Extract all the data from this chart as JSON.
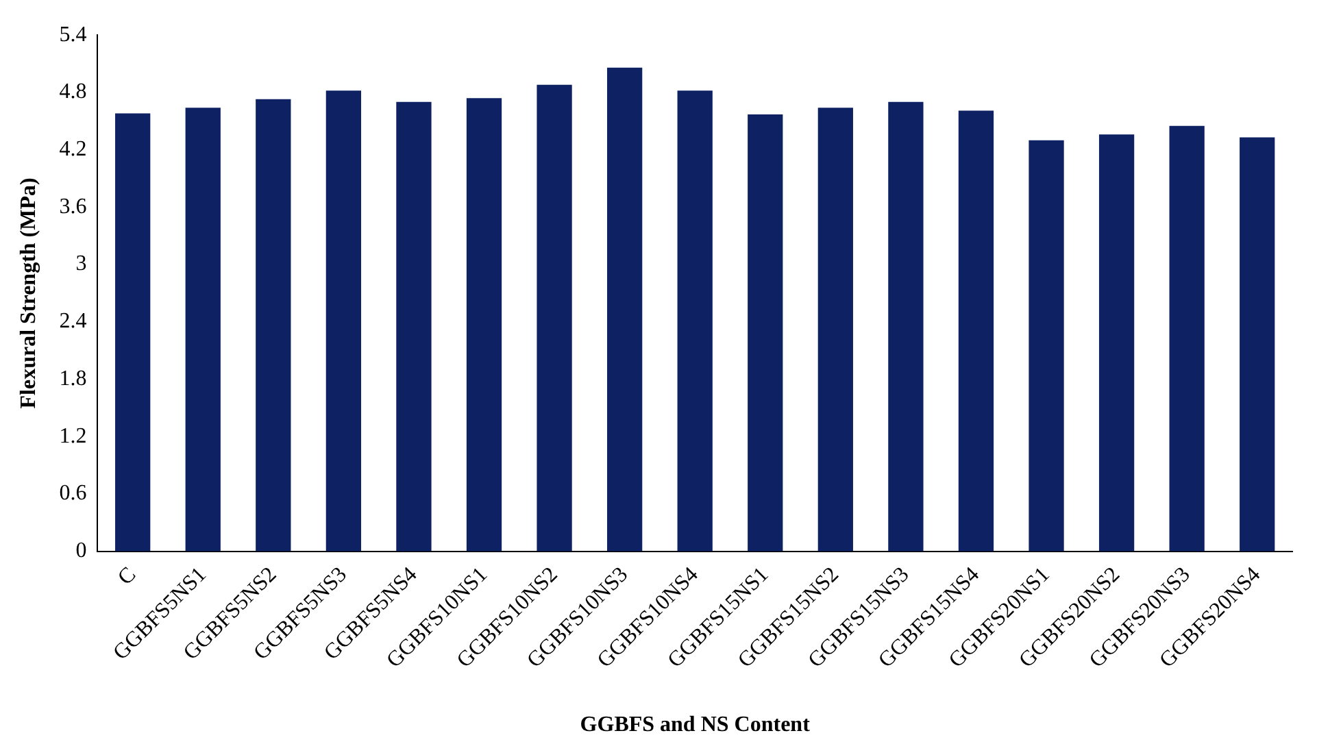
{
  "chart_data": {
    "type": "bar",
    "xlabel": "GGBFS and NS Content",
    "ylabel": "Flexural Strength (MPa)",
    "categories": [
      "C",
      "GGBFS5NS1",
      "GGBFS5NS2",
      "GGBFS5NS3",
      "GGBFS5NS4",
      "GGBFS10NS1",
      "GGBFS10NS2",
      "GGBFS10NS3",
      "GGBFS10NS4",
      "GGBFS15NS1",
      "GGBFS15NS2",
      "GGBFS15NS3",
      "GGBFS15NS4",
      "GGBFS20NS1",
      "GGBFS20NS2",
      "GGBFS20NS3",
      "GGBFS20NS4"
    ],
    "values": [
      4.58,
      4.64,
      4.73,
      4.82,
      4.7,
      4.74,
      4.88,
      5.06,
      4.82,
      4.57,
      4.64,
      4.7,
      4.61,
      4.3,
      4.36,
      4.45,
      4.33
    ],
    "color": "#0d2163",
    "ylim": [
      0,
      5.4
    ],
    "yticks": [
      0,
      0.6,
      1.2,
      1.8,
      2.4,
      3,
      3.6,
      4.2,
      4.8,
      5.4
    ],
    "grid": false,
    "legend": false
  }
}
